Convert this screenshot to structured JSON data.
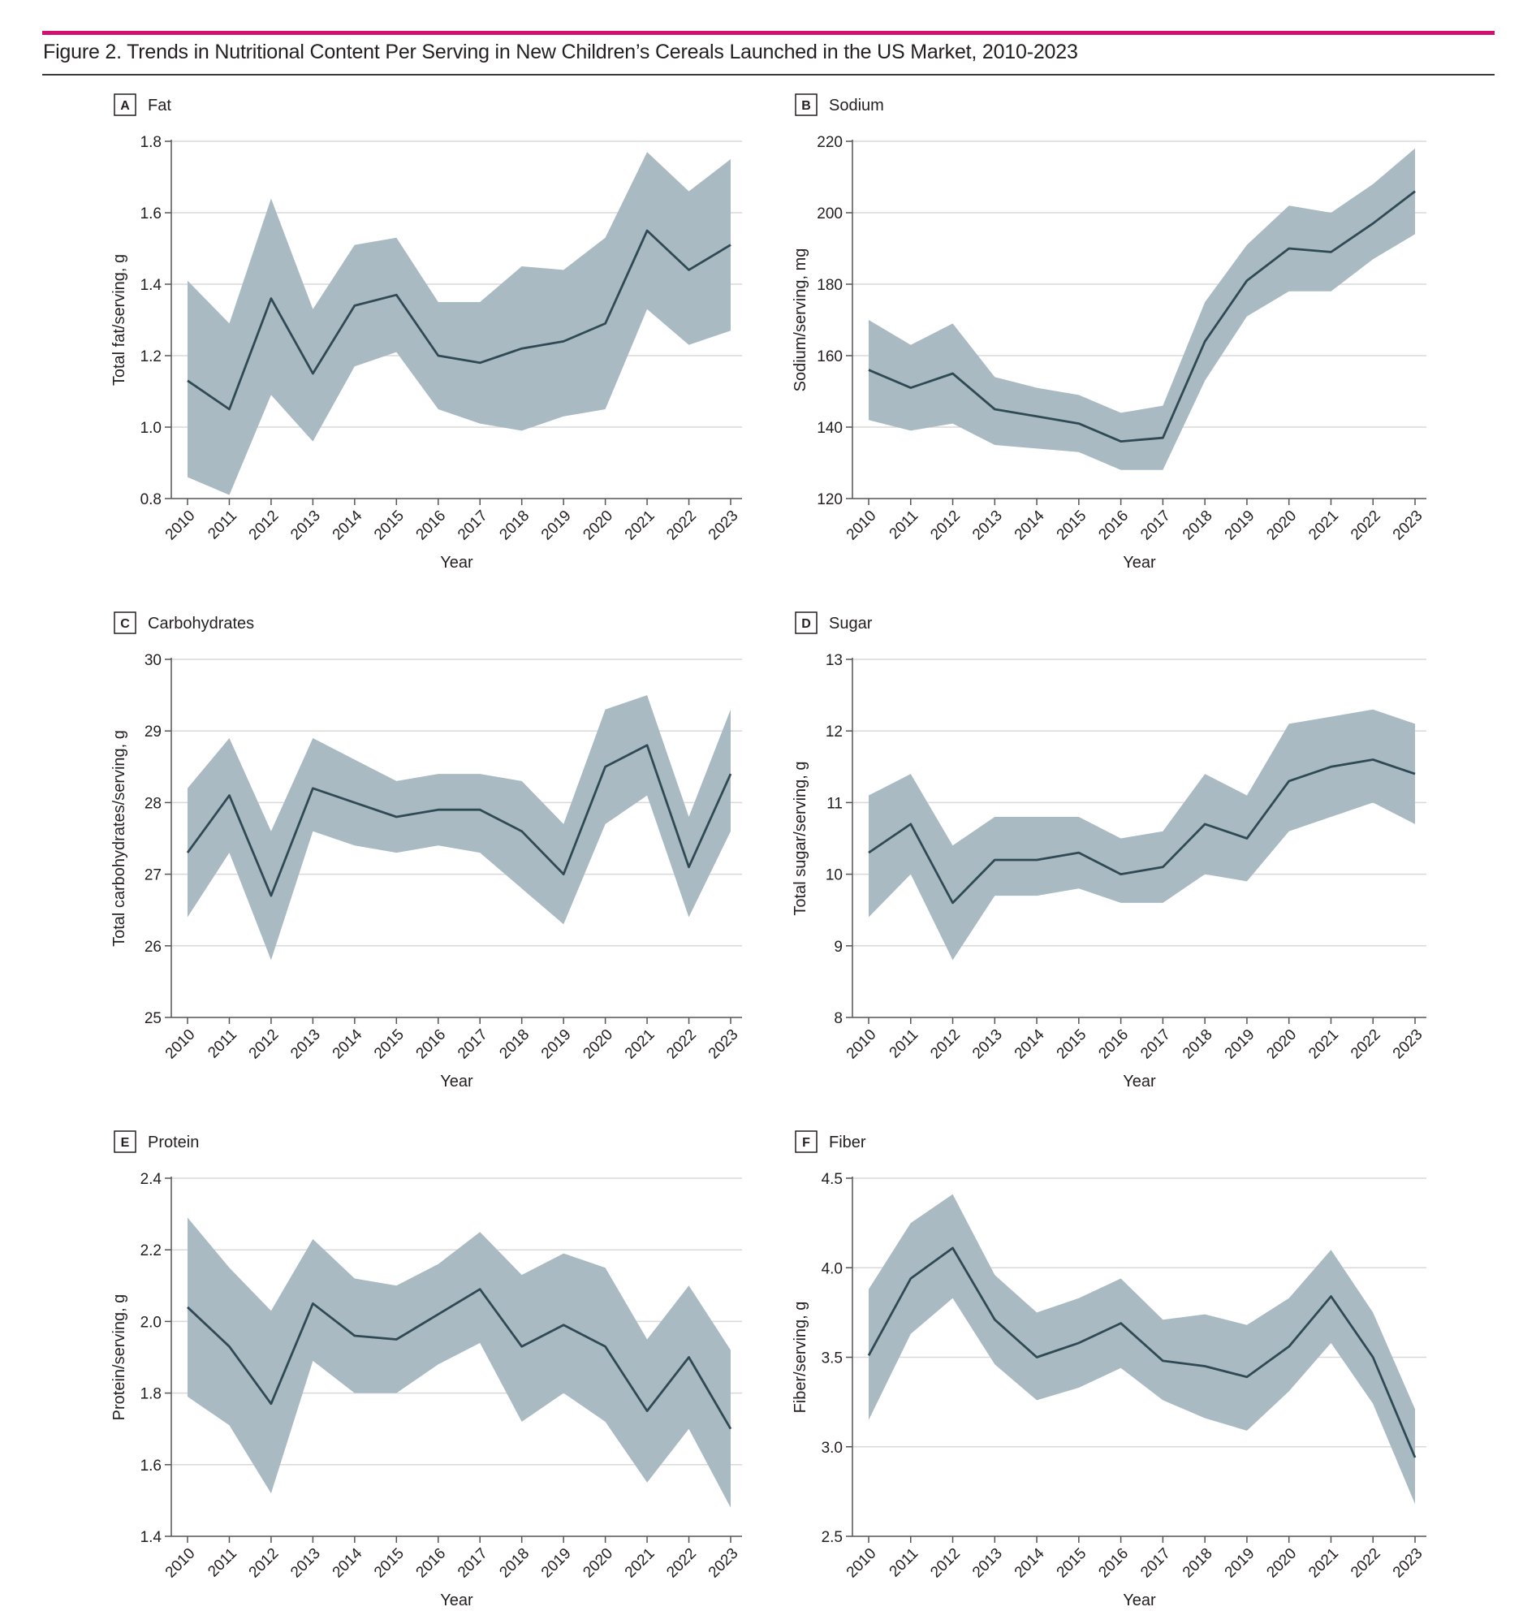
{
  "figure": {
    "title": "Figure 2. Trends in Nutritional Content Per Serving in New Children’s Cereals Launched in the US Market, 2010-2023",
    "accent_color": "#d4106f",
    "band_color": "#a9bac3",
    "line_color": "#2f4a55",
    "grid_color": "#d9d9d9"
  },
  "chart_data": [
    {
      "type": "line",
      "panel_letter": "A",
      "title": "Fat",
      "xlabel": "Year",
      "ylabel": "Total fat/serving, g",
      "x": [
        2010,
        2011,
        2012,
        2013,
        2014,
        2015,
        2016,
        2017,
        2018,
        2019,
        2020,
        2021,
        2022,
        2023
      ],
      "ylim": [
        0.8,
        1.8
      ],
      "yticks": [
        "0.8",
        "1.0",
        "1.2",
        "1.4",
        "1.6",
        "1.8"
      ],
      "series": [
        {
          "values": [
            1.13,
            1.05,
            1.36,
            1.15,
            1.34,
            1.37,
            1.2,
            1.18,
            1.22,
            1.24,
            1.29,
            1.55,
            1.44,
            1.51
          ],
          "lower": [
            0.86,
            0.81,
            1.09,
            0.96,
            1.17,
            1.21,
            1.05,
            1.01,
            0.99,
            1.03,
            1.05,
            1.33,
            1.23,
            1.27
          ],
          "upper": [
            1.41,
            1.29,
            1.64,
            1.33,
            1.51,
            1.53,
            1.35,
            1.35,
            1.45,
            1.44,
            1.53,
            1.77,
            1.66,
            1.75
          ]
        }
      ],
      "grid": "horizontal"
    },
    {
      "type": "line",
      "panel_letter": "B",
      "title": "Sodium",
      "xlabel": "Year",
      "ylabel": "Sodium/serving, mg",
      "x": [
        2010,
        2011,
        2012,
        2013,
        2014,
        2015,
        2016,
        2017,
        2018,
        2019,
        2020,
        2021,
        2022,
        2023
      ],
      "ylim": [
        120,
        220
      ],
      "yticks": [
        "120",
        "140",
        "160",
        "180",
        "200",
        "220"
      ],
      "series": [
        {
          "values": [
            156,
            151,
            155,
            145,
            143,
            141,
            136,
            137,
            164,
            181,
            190,
            189,
            197,
            206
          ],
          "lower": [
            142,
            139,
            141,
            135,
            134,
            133,
            128,
            128,
            153,
            171,
            178,
            178,
            187,
            194
          ],
          "upper": [
            170,
            163,
            169,
            154,
            151,
            149,
            144,
            146,
            175,
            191,
            202,
            200,
            208,
            218
          ]
        }
      ],
      "grid": "horizontal"
    },
    {
      "type": "line",
      "panel_letter": "C",
      "title": "Carbohydrates",
      "xlabel": "Year",
      "ylabel": "Total carbohydrates/serving, g",
      "x": [
        2010,
        2011,
        2012,
        2013,
        2014,
        2015,
        2016,
        2017,
        2018,
        2019,
        2020,
        2021,
        2022,
        2023
      ],
      "ylim": [
        25,
        30
      ],
      "yticks": [
        "25",
        "26",
        "27",
        "28",
        "29",
        "30"
      ],
      "series": [
        {
          "values": [
            27.3,
            28.1,
            26.7,
            28.2,
            28.0,
            27.8,
            27.9,
            27.9,
            27.6,
            27.0,
            28.5,
            28.8,
            27.1,
            28.4
          ],
          "lower": [
            26.4,
            27.3,
            25.8,
            27.6,
            27.4,
            27.3,
            27.4,
            27.3,
            26.8,
            26.3,
            27.7,
            28.1,
            26.4,
            27.6
          ],
          "upper": [
            28.2,
            28.9,
            27.6,
            28.9,
            28.6,
            28.3,
            28.4,
            28.4,
            28.3,
            27.7,
            29.3,
            29.5,
            27.8,
            29.3
          ]
        }
      ],
      "grid": "horizontal"
    },
    {
      "type": "line",
      "panel_letter": "D",
      "title": "Sugar",
      "xlabel": "Year",
      "ylabel": "Total sugar/serving, g",
      "x": [
        2010,
        2011,
        2012,
        2013,
        2014,
        2015,
        2016,
        2017,
        2018,
        2019,
        2020,
        2021,
        2022,
        2023
      ],
      "ylim": [
        8,
        13
      ],
      "yticks": [
        "8",
        "9",
        "10",
        "11",
        "12",
        "13"
      ],
      "series": [
        {
          "values": [
            10.3,
            10.7,
            9.6,
            10.2,
            10.2,
            10.3,
            10.0,
            10.1,
            10.7,
            10.5,
            11.3,
            11.5,
            11.6,
            11.4
          ],
          "lower": [
            9.4,
            10.0,
            8.8,
            9.7,
            9.7,
            9.8,
            9.6,
            9.6,
            10.0,
            9.9,
            10.6,
            10.8,
            11.0,
            10.7
          ],
          "upper": [
            11.1,
            11.4,
            10.4,
            10.8,
            10.8,
            10.8,
            10.5,
            10.6,
            11.4,
            11.1,
            12.1,
            12.2,
            12.3,
            12.1
          ]
        }
      ],
      "grid": "horizontal"
    },
    {
      "type": "line",
      "panel_letter": "E",
      "title": "Protein",
      "xlabel": "Year",
      "ylabel": "Protein/serving, g",
      "x": [
        2010,
        2011,
        2012,
        2013,
        2014,
        2015,
        2016,
        2017,
        2018,
        2019,
        2020,
        2021,
        2022,
        2023
      ],
      "ylim": [
        1.4,
        2.4
      ],
      "yticks": [
        "1.4",
        "1.6",
        "1.8",
        "2.0",
        "2.2",
        "2.4"
      ],
      "series": [
        {
          "values": [
            2.04,
            1.93,
            1.77,
            2.05,
            1.96,
            1.95,
            2.02,
            2.09,
            1.93,
            1.99,
            1.93,
            1.75,
            1.9,
            1.7
          ],
          "lower": [
            1.79,
            1.71,
            1.52,
            1.89,
            1.8,
            1.8,
            1.88,
            1.94,
            1.72,
            1.8,
            1.72,
            1.55,
            1.7,
            1.48
          ],
          "upper": [
            2.29,
            2.15,
            2.03,
            2.23,
            2.12,
            2.1,
            2.16,
            2.25,
            2.13,
            2.19,
            2.15,
            1.95,
            2.1,
            1.92
          ]
        }
      ],
      "grid": "horizontal"
    },
    {
      "type": "line",
      "panel_letter": "F",
      "title": "Fiber",
      "xlabel": "Year",
      "ylabel": "Fiber/serving, g",
      "x": [
        2010,
        2011,
        2012,
        2013,
        2014,
        2015,
        2016,
        2017,
        2018,
        2019,
        2020,
        2021,
        2022,
        2023
      ],
      "ylim": [
        2.5,
        4.5
      ],
      "yticks": [
        "2.5",
        "3.0",
        "3.5",
        "4.0",
        "4.5"
      ],
      "series": [
        {
          "values": [
            3.51,
            3.94,
            4.11,
            3.71,
            3.5,
            3.58,
            3.69,
            3.48,
            3.45,
            3.39,
            3.56,
            3.84,
            3.5,
            2.94
          ],
          "lower": [
            3.15,
            3.63,
            3.83,
            3.46,
            3.26,
            3.33,
            3.44,
            3.26,
            3.16,
            3.09,
            3.31,
            3.58,
            3.24,
            2.68
          ],
          "upper": [
            3.88,
            4.25,
            4.41,
            3.96,
            3.75,
            3.83,
            3.94,
            3.71,
            3.74,
            3.68,
            3.83,
            4.1,
            3.75,
            3.21
          ]
        }
      ],
      "grid": "horizontal"
    }
  ]
}
